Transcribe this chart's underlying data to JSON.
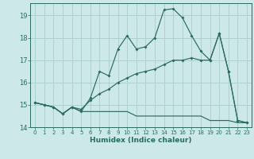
{
  "xlabel": "Humidex (Indice chaleur)",
  "xlim": [
    -0.5,
    23.5
  ],
  "ylim": [
    14.0,
    19.55
  ],
  "yticks": [
    14,
    15,
    16,
    17,
    18,
    19
  ],
  "xticks": [
    0,
    1,
    2,
    3,
    4,
    5,
    6,
    7,
    8,
    9,
    10,
    11,
    12,
    13,
    14,
    15,
    16,
    17,
    18,
    19,
    20,
    21,
    22,
    23
  ],
  "bg_color": "#cce8e8",
  "grid_color": "#aacccc",
  "line_color": "#2a6b60",
  "line1_x": [
    0,
    1,
    2,
    3,
    4,
    5,
    6,
    7,
    8,
    9,
    10,
    11,
    12,
    13,
    14,
    15,
    16,
    17,
    18,
    19,
    20,
    21,
    22,
    23
  ],
  "line1_y": [
    15.1,
    15.0,
    14.9,
    14.6,
    14.9,
    14.7,
    15.3,
    16.5,
    16.3,
    17.5,
    18.1,
    17.5,
    17.6,
    18.0,
    19.25,
    19.3,
    18.9,
    18.1,
    17.4,
    17.0,
    18.2,
    16.5,
    14.3,
    14.2
  ],
  "line2_x": [
    0,
    1,
    2,
    3,
    4,
    5,
    6,
    7,
    8,
    9,
    10,
    11,
    12,
    13,
    14,
    15,
    16,
    17,
    18,
    19,
    20,
    21,
    22,
    23
  ],
  "line2_y": [
    15.1,
    15.0,
    14.9,
    14.6,
    14.9,
    14.8,
    15.2,
    15.5,
    15.7,
    16.0,
    16.2,
    16.4,
    16.5,
    16.6,
    16.8,
    17.0,
    17.0,
    17.1,
    17.0,
    17.0,
    18.2,
    16.5,
    14.3,
    14.2
  ],
  "line3_x": [
    0,
    1,
    2,
    3,
    4,
    5,
    6,
    7,
    8,
    9,
    10,
    11,
    12,
    13,
    14,
    15,
    16,
    17,
    18,
    19,
    20,
    21,
    22,
    23
  ],
  "line3_y": [
    15.1,
    15.0,
    14.9,
    14.6,
    14.9,
    14.7,
    14.7,
    14.7,
    14.7,
    14.7,
    14.7,
    14.5,
    14.5,
    14.5,
    14.5,
    14.5,
    14.5,
    14.5,
    14.5,
    14.3,
    14.3,
    14.3,
    14.2,
    14.2
  ]
}
